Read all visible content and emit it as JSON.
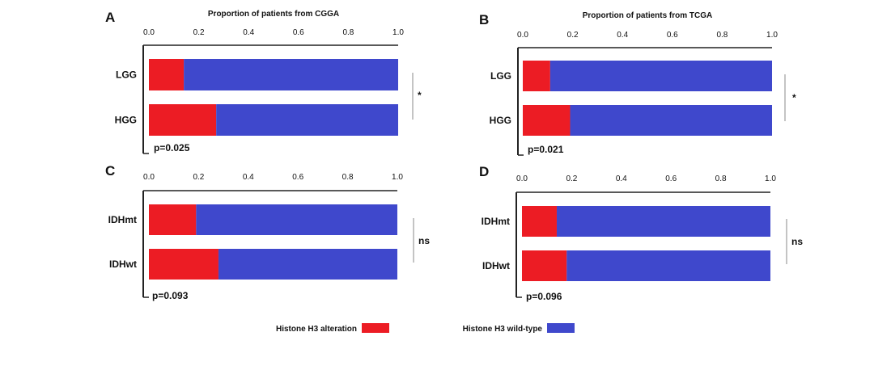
{
  "colors": {
    "alteration": "#ec1c24",
    "wild_type": "#3f48cc",
    "axis": "#222222",
    "bracket": "#888888"
  },
  "legend": {
    "items": [
      "Histone H3 alteration",
      "Histone H3 wild-type"
    ]
  },
  "chart_data": [
    {
      "type": "bar",
      "orientation": "horizontal",
      "stacked": true,
      "panel": "A",
      "title": "Proportion of patients from CGGA",
      "categories": [
        "LGG",
        "HGG"
      ],
      "xlim": [
        0,
        1
      ],
      "xticks": [
        "0.0",
        "0.2",
        "0.4",
        "0.6",
        "0.8",
        "1.0"
      ],
      "series": [
        {
          "name": "Histone H3 alteration",
          "values": [
            0.14,
            0.27
          ]
        },
        {
          "name": "Histone H3 wild-type",
          "values": [
            0.86,
            0.73
          ]
        }
      ],
      "p_value": "p=0.025",
      "significance": "*"
    },
    {
      "type": "bar",
      "orientation": "horizontal",
      "stacked": true,
      "panel": "B",
      "title": "Proportion of patients from TCGA",
      "categories": [
        "LGG",
        "HGG"
      ],
      "xlim": [
        0,
        1
      ],
      "xticks": [
        "0.0",
        "0.2",
        "0.4",
        "0.6",
        "0.8",
        "1.0"
      ],
      "series": [
        {
          "name": "Histone H3 alteration",
          "values": [
            0.11,
            0.19
          ]
        },
        {
          "name": "Histone H3 wild-type",
          "values": [
            0.89,
            0.81
          ]
        }
      ],
      "p_value": "p=0.021",
      "significance": "*"
    },
    {
      "type": "bar",
      "orientation": "horizontal",
      "stacked": true,
      "panel": "C",
      "title": "",
      "categories": [
        "IDHmt",
        "IDHwt"
      ],
      "xlim": [
        0,
        1
      ],
      "xticks": [
        "0.0",
        "0.2",
        "0.4",
        "0.6",
        "0.8",
        "1.0"
      ],
      "series": [
        {
          "name": "Histone H3 alteration",
          "values": [
            0.19,
            0.28
          ]
        },
        {
          "name": "Histone H3 wild-type",
          "values": [
            0.81,
            0.72
          ]
        }
      ],
      "p_value": "p=0.093",
      "significance": "ns"
    },
    {
      "type": "bar",
      "orientation": "horizontal",
      "stacked": true,
      "panel": "D",
      "title": "",
      "categories": [
        "IDHmt",
        "IDHwt"
      ],
      "xlim": [
        0,
        1
      ],
      "xticks": [
        "0.0",
        "0.2",
        "0.4",
        "0.6",
        "0.8",
        "1.0"
      ],
      "series": [
        {
          "name": "Histone H3 alteration",
          "values": [
            0.14,
            0.18
          ]
        },
        {
          "name": "Histone H3 wild-type",
          "values": [
            0.86,
            0.82
          ]
        }
      ],
      "p_value": "p=0.096",
      "significance": "ns"
    }
  ]
}
